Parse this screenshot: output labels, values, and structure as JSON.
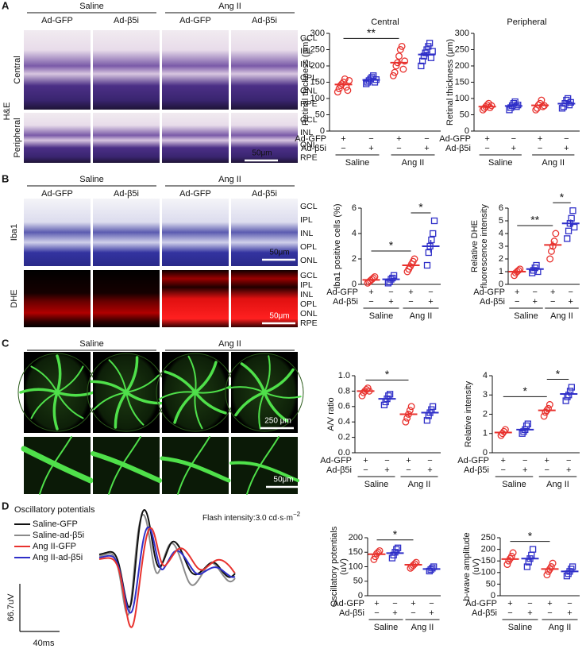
{
  "panels": {
    "A": {
      "letter": "A",
      "conditions": [
        "Saline",
        "Ang II"
      ],
      "columns": [
        "Ad-GFP",
        "Ad-β5i",
        "Ad-GFP",
        "Ad-β5i"
      ],
      "row_labels": [
        "Central",
        "Peripheral"
      ],
      "stain": "H&E",
      "layers": [
        [
          "GCL",
          "IPL",
          "INL",
          "OPL",
          "ONL",
          "RPE"
        ],
        [
          "GCL",
          "INL",
          "ONL",
          "RPE"
        ]
      ],
      "scale_bars": [
        "50μm"
      ]
    },
    "B": {
      "letter": "B",
      "conditions": [
        "Saline",
        "Ang II"
      ],
      "columns": [
        "Ad-GFP",
        "Ad-β5i",
        "Ad-GFP",
        "Ad-β5i"
      ],
      "row_labels": [
        "Iba1",
        "DHE"
      ],
      "layers": [
        [
          "GCL",
          "IPL",
          "INL",
          "OPL",
          "ONL"
        ],
        [
          "GCL",
          "IPL",
          "INL",
          "OPL",
          "ONL",
          "RPE"
        ]
      ],
      "scale_bars": [
        "50μm",
        "50μm"
      ]
    },
    "C": {
      "letter": "C",
      "conditions": [
        "Saline",
        "Ang II"
      ],
      "columns": [
        "Ad-GFP",
        "Ad-β5i",
        "Ad-GFP",
        "Ad-β5i"
      ],
      "scale_bars": [
        "250 μm",
        "50μm"
      ]
    },
    "D": {
      "letter": "D",
      "legend_title": "Oscillatory potentials",
      "legend": [
        {
          "name": "Saline-GFP",
          "color": "#111111"
        },
        {
          "name": "Saline-ad-β5i",
          "color": "#8a8a8a"
        },
        {
          "name": "Ang II-GFP",
          "color": "#e8322e"
        },
        {
          "name": "Ang II-ad-β5i",
          "color": "#2f2fc8"
        }
      ],
      "flash": "Flash intensity:3.0 cd·s·m",
      "flash_exp": "−2",
      "scale_v": "66.7uV",
      "scale_t": "40ms"
    }
  },
  "chart_data": [
    {
      "type": "dotplot",
      "title": "Central",
      "ylabel": [
        "Retinal thickness (μm)"
      ],
      "ylim": [
        0,
        300
      ],
      "yticks": [
        0,
        50,
        100,
        150,
        200,
        250,
        300
      ],
      "groups": [
        {
          "color": "#e8322e",
          "marker": "circle",
          "values": [
            120,
            130,
            140,
            145,
            150,
            160,
            135,
            125,
            155
          ],
          "mean": 143,
          "sem": 7
        },
        {
          "color": "#2f2fc8",
          "marker": "square",
          "values": [
            145,
            150,
            155,
            160,
            165,
            170,
            150,
            158
          ],
          "mean": 157,
          "sem": 4
        },
        {
          "color": "#e8322e",
          "marker": "circle",
          "values": [
            170,
            180,
            200,
            210,
            230,
            250,
            260,
            190,
            215
          ],
          "mean": 210,
          "sem": 10
        },
        {
          "color": "#2f2fc8",
          "marker": "square",
          "values": [
            200,
            215,
            230,
            240,
            250,
            260,
            270,
            225,
            245
          ],
          "mean": 235,
          "sem": 8
        }
      ],
      "significance": [
        {
          "between": [
            0,
            2
          ],
          "label": "**"
        }
      ],
      "rows": [
        {
          "label": "Ad-GFP",
          "signs": [
            "+",
            "−",
            "+",
            "−"
          ]
        },
        {
          "label": "Ad-β5i",
          "signs": [
            "−",
            "+",
            "−",
            "+"
          ]
        }
      ],
      "group_labels": [
        "Saline",
        "Ang II"
      ]
    },
    {
      "type": "dotplot",
      "title": "Peripheral",
      "ylabel": [
        "Retinal thickness (μm)"
      ],
      "ylim": [
        0,
        300
      ],
      "yticks": [
        0,
        50,
        100,
        150,
        200,
        250,
        300
      ],
      "groups": [
        {
          "color": "#e8322e",
          "marker": "circle",
          "values": [
            65,
            70,
            75,
            80,
            85,
            72,
            78
          ],
          "mean": 75,
          "sem": 3
        },
        {
          "color": "#2f2fc8",
          "marker": "square",
          "values": [
            65,
            72,
            78,
            85,
            90,
            75,
            80
          ],
          "mean": 77,
          "sem": 3
        },
        {
          "color": "#e8322e",
          "marker": "circle",
          "values": [
            65,
            70,
            80,
            85,
            95,
            75,
            78
          ],
          "mean": 79,
          "sem": 4
        },
        {
          "color": "#2f2fc8",
          "marker": "square",
          "values": [
            70,
            75,
            85,
            95,
            100,
            80,
            88
          ],
          "mean": 84,
          "sem": 4
        }
      ],
      "significance": [],
      "rows": [
        {
          "label": "Ad-GFP",
          "signs": [
            "+",
            "−",
            "+",
            "−"
          ]
        },
        {
          "label": "Ad-β5i",
          "signs": [
            "−",
            "+",
            "−",
            "+"
          ]
        }
      ],
      "group_labels": [
        "Saline",
        "Ang II"
      ]
    },
    {
      "type": "dotplot",
      "ylabel": [
        "Iba1 positive cells (%)"
      ],
      "ylim": [
        0,
        6
      ],
      "yticks": [
        0,
        2,
        4,
        6
      ],
      "groups": [
        {
          "color": "#e8322e",
          "marker": "circle",
          "values": [
            0.1,
            0.2,
            0.3,
            0.4,
            0.5,
            0.6
          ],
          "mean": 0.35,
          "sem": 0.08
        },
        {
          "color": "#2f2fc8",
          "marker": "square",
          "values": [
            0.1,
            0.2,
            0.4,
            0.5,
            0.7
          ],
          "mean": 0.4,
          "sem": 0.1
        },
        {
          "color": "#e8322e",
          "marker": "circle",
          "values": [
            1.0,
            1.2,
            1.4,
            1.6,
            1.8,
            2.0
          ],
          "mean": 1.5,
          "sem": 0.15
        },
        {
          "color": "#2f2fc8",
          "marker": "square",
          "values": [
            1.5,
            2.5,
            3.0,
            3.5,
            4.0,
            5.0
          ],
          "mean": 3.0,
          "sem": 0.5
        }
      ],
      "significance": [
        {
          "between": [
            0,
            2
          ],
          "label": "*"
        },
        {
          "between": [
            2,
            3
          ],
          "label": "*"
        }
      ],
      "rows": [
        {
          "label": "Ad-GFP",
          "signs": [
            "+",
            "−",
            "+",
            "−"
          ]
        },
        {
          "label": "Ad-β5i",
          "signs": [
            "−",
            "+",
            "−",
            "+"
          ]
        }
      ],
      "group_labels": [
        "Saline",
        "Ang II"
      ]
    },
    {
      "type": "dotplot",
      "ylabel": [
        "Relative DHE",
        "fluorescence intensity"
      ],
      "ylim": [
        0,
        6
      ],
      "yticks": [
        0,
        1,
        2,
        3,
        4,
        5,
        6
      ],
      "groups": [
        {
          "color": "#e8322e",
          "marker": "circle",
          "values": [
            0.7,
            0.9,
            1.0,
            1.1,
            1.2
          ],
          "mean": 1.0,
          "sem": 0.1
        },
        {
          "color": "#2f2fc8",
          "marker": "square",
          "values": [
            0.9,
            1.1,
            1.3,
            1.5,
            1.0
          ],
          "mean": 1.2,
          "sem": 0.1
        },
        {
          "color": "#e8322e",
          "marker": "circle",
          "values": [
            2.0,
            2.6,
            3.0,
            3.4,
            4.0
          ],
          "mean": 3.1,
          "sem": 0.3
        },
        {
          "color": "#2f2fc8",
          "marker": "square",
          "values": [
            3.6,
            4.2,
            4.8,
            5.2,
            5.8,
            4.5
          ],
          "mean": 4.8,
          "sem": 0.3
        }
      ],
      "significance": [
        {
          "between": [
            0,
            2
          ],
          "label": "**"
        },
        {
          "between": [
            2,
            3
          ],
          "label": "*"
        }
      ],
      "rows": [
        {
          "label": "Ad-GFP",
          "signs": [
            "+",
            "−",
            "+",
            "−"
          ]
        },
        {
          "label": "Ad-β5i",
          "signs": [
            "−",
            "+",
            "−",
            "+"
          ]
        }
      ],
      "group_labels": [
        "Saline",
        "Ang II"
      ]
    },
    {
      "type": "dotplot",
      "ylabel": [
        "A/V ratio"
      ],
      "ylim": [
        0,
        1
      ],
      "yticks": [
        {
          "value": 0,
          "label": "0.0"
        },
        0.2,
        0.4,
        0.6,
        0.8,
        {
          "value": 1,
          "label": "1.0"
        }
      ],
      "groups": [
        {
          "color": "#e8322e",
          "marker": "circle",
          "values": [
            0.74,
            0.78,
            0.8,
            0.82,
            0.84,
            0.8
          ],
          "mean": 0.8,
          "sem": 0.015
        },
        {
          "color": "#2f2fc8",
          "marker": "square",
          "values": [
            0.62,
            0.66,
            0.7,
            0.74,
            0.76
          ],
          "mean": 0.7,
          "sem": 0.03
        },
        {
          "color": "#e8322e",
          "marker": "circle",
          "values": [
            0.4,
            0.45,
            0.5,
            0.55,
            0.6
          ],
          "mean": 0.5,
          "sem": 0.03
        },
        {
          "color": "#2f2fc8",
          "marker": "square",
          "values": [
            0.42,
            0.48,
            0.52,
            0.56,
            0.6
          ],
          "mean": 0.52,
          "sem": 0.03
        }
      ],
      "significance": [
        {
          "between": [
            0,
            2
          ],
          "label": "*"
        }
      ],
      "rows": [
        {
          "label": "Ad-GFP",
          "signs": [
            "+",
            "−",
            "+",
            "−"
          ]
        },
        {
          "label": "Ad-β5i",
          "signs": [
            "−",
            "+",
            "−",
            "+"
          ]
        }
      ],
      "group_labels": [
        "Saline",
        "Ang II"
      ]
    },
    {
      "type": "dotplot",
      "ylabel": [
        "Relative intensity"
      ],
      "ylim": [
        0,
        4
      ],
      "yticks": [
        0,
        1,
        2,
        3,
        4
      ],
      "groups": [
        {
          "color": "#e8322e",
          "marker": "circle",
          "values": [
            0.9,
            1.0,
            1.1,
            1.2
          ],
          "mean": 1.05,
          "sem": 0.07
        },
        {
          "color": "#2f2fc8",
          "marker": "square",
          "values": [
            1.0,
            1.1,
            1.2,
            1.4,
            1.5
          ],
          "mean": 1.2,
          "sem": 0.08
        },
        {
          "color": "#e8322e",
          "marker": "circle",
          "values": [
            1.9,
            2.1,
            2.2,
            2.3,
            2.5
          ],
          "mean": 2.2,
          "sem": 0.1
        },
        {
          "color": "#2f2fc8",
          "marker": "square",
          "values": [
            2.7,
            2.9,
            3.0,
            3.2,
            3.4
          ],
          "mean": 3.05,
          "sem": 0.1
        }
      ],
      "significance": [
        {
          "between": [
            0,
            2
          ],
          "label": "*"
        },
        {
          "between": [
            2,
            3
          ],
          "label": "*"
        }
      ],
      "rows": [
        {
          "label": "Ad-GFP",
          "signs": [
            "+",
            "−",
            "+",
            "−"
          ]
        },
        {
          "label": "Ad-β5i",
          "signs": [
            "−",
            "+",
            "−",
            "+"
          ]
        }
      ],
      "group_labels": [
        "Saline",
        "Ang II"
      ]
    },
    {
      "type": "dotplot",
      "ylabel": [
        "Oscillatory potentials",
        "(uV)"
      ],
      "ylim": [
        0,
        200
      ],
      "yticks": [
        0,
        50,
        100,
        150,
        200
      ],
      "groups": [
        {
          "color": "#e8322e",
          "marker": "circle",
          "values": [
            125,
            135,
            145,
            150,
            155
          ],
          "mean": 143,
          "sem": 6
        },
        {
          "color": "#2f2fc8",
          "marker": "square",
          "values": [
            130,
            140,
            150,
            160,
            165
          ],
          "mean": 147,
          "sem": 6
        },
        {
          "color": "#e8322e",
          "marker": "circle",
          "values": [
            95,
            100,
            105,
            110,
            115
          ],
          "mean": 107,
          "sem": 4
        },
        {
          "color": "#2f2fc8",
          "marker": "square",
          "values": [
            85,
            90,
            95,
            100
          ],
          "mean": 92,
          "sem": 4
        }
      ],
      "significance": [
        {
          "between": [
            0,
            2
          ],
          "label": "*"
        }
      ],
      "rows": [
        {
          "label": "Ad-GFP",
          "signs": [
            "+",
            "−",
            "+",
            "−"
          ]
        },
        {
          "label": "Ad-β5i",
          "signs": [
            "−",
            "+",
            "−",
            "+"
          ]
        }
      ],
      "group_labels": [
        "Saline",
        "Ang II"
      ]
    },
    {
      "type": "dotplot",
      "ylabel": [
        "b-wave amplitude",
        "(uV)"
      ],
      "ylim": [
        0,
        250
      ],
      "yticks": [
        0,
        50,
        100,
        150,
        200,
        250
      ],
      "groups": [
        {
          "color": "#e8322e",
          "marker": "circle",
          "values": [
            135,
            150,
            160,
            170,
            185
          ],
          "mean": 158,
          "sem": 9
        },
        {
          "color": "#2f2fc8",
          "marker": "square",
          "values": [
            125,
            145,
            160,
            175,
            200
          ],
          "mean": 160,
          "sem": 13
        },
        {
          "color": "#e8322e",
          "marker": "circle",
          "values": [
            90,
            105,
            115,
            125,
            140
          ],
          "mean": 115,
          "sem": 9
        },
        {
          "color": "#2f2fc8",
          "marker": "square",
          "values": [
            85,
            95,
            105,
            115,
            125
          ],
          "mean": 105,
          "sem": 8
        }
      ],
      "significance": [
        {
          "between": [
            0,
            2
          ],
          "label": "*"
        }
      ],
      "rows": [
        {
          "label": "Ad-GFP",
          "signs": [
            "+",
            "−",
            "+",
            "−"
          ]
        },
        {
          "label": "Ad-β5i",
          "signs": [
            "−",
            "+",
            "−",
            "+"
          ]
        }
      ],
      "group_labels": [
        "Saline",
        "Ang II"
      ]
    }
  ]
}
